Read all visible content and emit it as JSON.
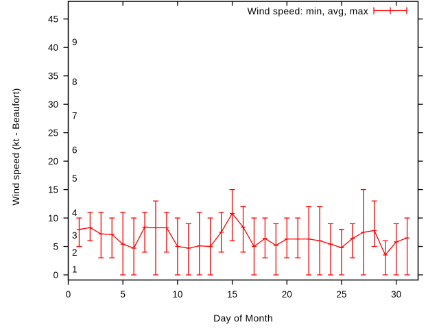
{
  "chart_data": {
    "type": "errorbar-line",
    "title": "",
    "legend_label": "Wind speed: min, avg, max",
    "legend_position": "top-right-inside",
    "xlabel": "Day of Month",
    "ylabel": "Wind speed (kt - Beaufort)",
    "series_color": "#ff0000",
    "axis_color": "#000000",
    "background_color": "#ffffff",
    "grid": false,
    "xlim": [
      0,
      32
    ],
    "ylim": [
      -0.9,
      48.1
    ],
    "xticks": [
      0,
      5,
      10,
      15,
      20,
      25,
      30
    ],
    "yticks": [
      0,
      5,
      10,
      15,
      20,
      25,
      30,
      35,
      40,
      45
    ],
    "beaufort_scale": {
      "labels": [
        "1",
        "2",
        "3",
        "4",
        "5",
        "6",
        "7",
        "8",
        "9"
      ],
      "knots": [
        1,
        4,
        7,
        11,
        17,
        22,
        28,
        34,
        41
      ]
    },
    "days": [
      1,
      2,
      3,
      4,
      5,
      6,
      7,
      8,
      9,
      10,
      11,
      12,
      13,
      14,
      15,
      16,
      17,
      18,
      19,
      20,
      21,
      22,
      23,
      24,
      25,
      26,
      27,
      28,
      29,
      30,
      31
    ],
    "series": [
      {
        "name": "min",
        "values": [
          5,
          6,
          3,
          3,
          0,
          0,
          4,
          0,
          4,
          0,
          0,
          0,
          0,
          4,
          6,
          4,
          0,
          3,
          0,
          3,
          3,
          0,
          0,
          0,
          0,
          3,
          0,
          5,
          0,
          0,
          0
        ]
      },
      {
        "name": "avg",
        "values": [
          8.0,
          8.3,
          7.2,
          7.1,
          5.4,
          4.7,
          8.4,
          8.3,
          8.3,
          5.0,
          4.7,
          5.1,
          5.0,
          7.5,
          10.8,
          8.4,
          5.0,
          6.4,
          5.2,
          6.3,
          6.3,
          6.3,
          6.0,
          5.4,
          4.8,
          6.4,
          7.5,
          7.8,
          3.5,
          5.8,
          6.5
        ]
      },
      {
        "name": "max",
        "values": [
          10,
          11,
          11,
          10,
          11,
          10,
          11,
          13,
          11,
          10,
          9,
          11,
          10,
          11,
          15,
          12,
          10,
          10,
          9,
          10,
          10,
          12,
          12,
          9,
          8,
          9,
          15,
          13,
          6,
          9,
          10
        ]
      }
    ]
  }
}
